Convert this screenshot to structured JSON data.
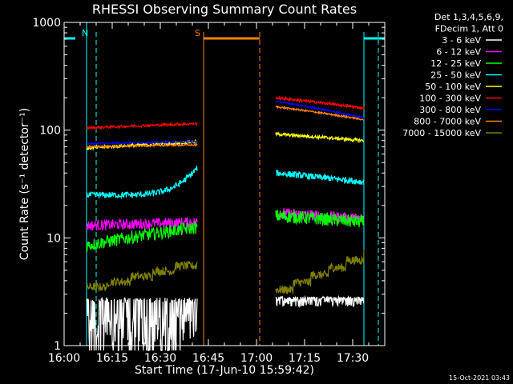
{
  "chart_data": {
    "type": "line",
    "title": "RHESSI Observing Summary Count Rates",
    "xlabel": "Start Time (17-Jun-10 15:59:42)",
    "ylabel": "Count Rate (s⁻¹ detector⁻¹)",
    "y_scale": "log",
    "ylim": [
      1,
      1000
    ],
    "xlim_minutes": [
      0,
      100
    ],
    "x_ticks": [
      {
        "t": 0,
        "label": "16:00"
      },
      {
        "t": 15,
        "label": "16:15"
      },
      {
        "t": 30,
        "label": "16:30"
      },
      {
        "t": 45,
        "label": "16:45"
      },
      {
        "t": 60,
        "label": "17:00"
      },
      {
        "t": 75,
        "label": "17:15"
      },
      {
        "t": 90,
        "label": "17:30"
      }
    ],
    "y_ticks": [
      {
        "v": 1,
        "label": "1"
      },
      {
        "v": 10,
        "label": "10"
      },
      {
        "v": 100,
        "label": "100"
      },
      {
        "v": 1000,
        "label": "1000"
      }
    ],
    "legend_header": [
      "Det 1,3,4,5,6,9,",
      "FDecim 1, Att 0"
    ],
    "intervals": [
      {
        "start": 7,
        "end": 41.5
      },
      {
        "start": 66,
        "end": 93.5
      }
    ],
    "series": [
      {
        "name": "3 - 6 keV",
        "color": "#ffffff",
        "level": [
          1.6,
          2.5
        ],
        "noise": 0.35,
        "kind": "low"
      },
      {
        "name": "6 - 12 keV",
        "color": "#ff00ff",
        "level": [
          13,
          14
        ],
        "noise": 0.05,
        "kind": "flat"
      },
      {
        "name": "12 - 25 keV",
        "color": "#00ff00",
        "level": [
          8.5,
          12.5
        ],
        "noise": 0.06,
        "kind": "flat"
      },
      {
        "name": "25 - 50 keV",
        "color": "#00ffff",
        "level": [
          25,
          38
        ],
        "noise": 0.03,
        "kind": "rise"
      },
      {
        "name": "50 - 100 keV",
        "color": "#ffff00",
        "level": [
          68,
          78
        ],
        "noise": 0.015,
        "kind": "flat"
      },
      {
        "name": "100 - 300 keV",
        "color": "#ff0000",
        "level": [
          105,
          115
        ],
        "noise": 0.012,
        "kind": "flat"
      },
      {
        "name": "300 - 800 keV",
        "color": "#0000ff",
        "level": [
          75,
          78
        ],
        "noise": 0.008,
        "kind": "flat"
      },
      {
        "name": "800 - 7000 keV",
        "color": "#ff8000",
        "level": [
          70,
          73
        ],
        "noise": 0.008,
        "kind": "flat"
      },
      {
        "name": "7000 - 15000 keV",
        "color": "#808000",
        "level": [
          3.5,
          5.5
        ],
        "noise": 0.04,
        "kind": "step"
      }
    ],
    "second_interval_levels": {
      "3 - 6 keV": [
        2.6,
        2.6
      ],
      "6 - 12 keV": [
        17,
        15
      ],
      "12 - 25 keV": [
        16,
        14
      ],
      "25 - 50 keV": [
        40,
        33
      ],
      "50 - 100 keV": [
        92,
        80
      ],
      "100 - 300 keV": [
        200,
        160
      ],
      "300 - 800 keV": [
        185,
        130
      ],
      "800 - 7000 keV": [
        165,
        125
      ],
      "7000 - 15000 keV": [
        3.3,
        6.2
      ]
    },
    "flags": [
      {
        "label": "N",
        "color": "#00ffff",
        "bar_from": 0,
        "bar_to": 3.5,
        "line_at": 10
      },
      {
        "label": "S",
        "color": "#ff8000",
        "bar_from": 43.5,
        "bar_to": 61,
        "line_at": 61
      }
    ],
    "flag_right_bar": {
      "color": "#00ffff",
      "from": 93.5,
      "to": 100,
      "line_at": 98
    }
  },
  "footer_timestamp": "15-Oct-2021 03:43"
}
